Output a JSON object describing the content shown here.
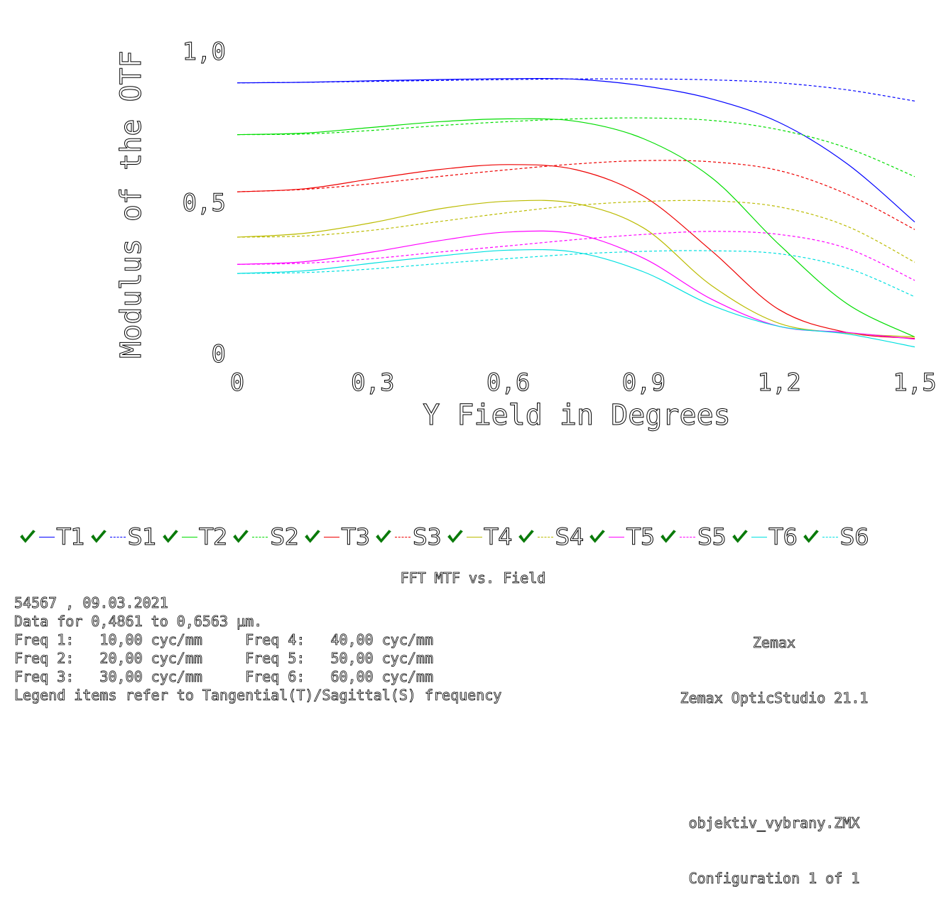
{
  "chart_data": {
    "type": "line",
    "title": "FFT MTF vs. Field",
    "xlabel": "Y Field in Degrees",
    "ylabel": "Modulus of the OTF",
    "xlim": [
      0,
      1.5
    ],
    "ylim": [
      0,
      1.0
    ],
    "xticks": [
      "0",
      "0,3",
      "0,6",
      "0,9",
      "1,2",
      "1,5"
    ],
    "yticks": [
      "0",
      "0,5",
      "1,0"
    ],
    "grid": false,
    "legend_position": "bottom",
    "x": [
      0,
      0.15,
      0.3,
      0.45,
      0.6,
      0.75,
      0.9,
      1.05,
      1.2,
      1.35,
      1.5
    ],
    "series": [
      {
        "name": "T1",
        "color": "#0000ff",
        "style": "solid",
        "values": [
          0.895,
          0.897,
          0.902,
          0.906,
          0.909,
          0.907,
          0.885,
          0.842,
          0.764,
          0.628,
          0.435
        ]
      },
      {
        "name": "S1",
        "color": "#0000ff",
        "style": "dashed",
        "values": [
          0.895,
          0.897,
          0.9,
          0.903,
          0.906,
          0.908,
          0.908,
          0.905,
          0.895,
          0.872,
          0.835
        ]
      },
      {
        "name": "T2",
        "color": "#00dd00",
        "style": "solid",
        "values": [
          0.724,
          0.729,
          0.748,
          0.767,
          0.776,
          0.768,
          0.71,
          0.582,
          0.36,
          0.165,
          0.055
        ]
      },
      {
        "name": "S2",
        "color": "#00dd00",
        "style": "dashed",
        "values": [
          0.724,
          0.726,
          0.738,
          0.754,
          0.767,
          0.776,
          0.779,
          0.771,
          0.74,
          0.68,
          0.585
        ]
      },
      {
        "name": "T3",
        "color": "#ee0000",
        "style": "solid",
        "values": [
          0.535,
          0.545,
          0.578,
          0.609,
          0.625,
          0.608,
          0.52,
          0.34,
          0.145,
          0.07,
          0.05
        ]
      },
      {
        "name": "S3",
        "color": "#ee0000",
        "style": "dashed",
        "values": [
          0.535,
          0.543,
          0.562,
          0.586,
          0.608,
          0.627,
          0.638,
          0.634,
          0.605,
          0.527,
          0.41
        ]
      },
      {
        "name": "T4",
        "color": "#bbbb00",
        "style": "solid",
        "values": [
          0.385,
          0.398,
          0.433,
          0.479,
          0.504,
          0.496,
          0.415,
          0.225,
          0.1,
          0.068,
          0.055
        ]
      },
      {
        "name": "S4",
        "color": "#bbbb00",
        "style": "dashed",
        "values": [
          0.385,
          0.389,
          0.408,
          0.437,
          0.466,
          0.49,
          0.503,
          0.505,
          0.485,
          0.421,
          0.302
        ]
      },
      {
        "name": "T5",
        "color": "#ff00ff",
        "style": "solid",
        "values": [
          0.295,
          0.304,
          0.336,
          0.374,
          0.402,
          0.395,
          0.315,
          0.18,
          0.09,
          0.07,
          0.048
        ]
      },
      {
        "name": "S5",
        "color": "#ff00ff",
        "style": "dashed",
        "values": [
          0.295,
          0.299,
          0.314,
          0.336,
          0.356,
          0.377,
          0.394,
          0.404,
          0.394,
          0.348,
          0.242
        ]
      },
      {
        "name": "T6",
        "color": "#00e0e0",
        "style": "solid",
        "values": [
          0.265,
          0.274,
          0.299,
          0.323,
          0.342,
          0.335,
          0.27,
          0.16,
          0.09,
          0.065,
          0.022
        ]
      },
      {
        "name": "S6",
        "color": "#00e0e0",
        "style": "dashed",
        "values": [
          0.265,
          0.268,
          0.28,
          0.298,
          0.314,
          0.329,
          0.338,
          0.34,
          0.33,
          0.283,
          0.188
        ]
      }
    ]
  },
  "footer": {
    "title": "FFT MTF vs. Field",
    "lines_left": [
      "54567 , 09.03.2021",
      "Data for 0,4861 to 0,6563 µm.",
      "Freq 1:   10,00 cyc/mm     Freq 4:   40,00 cyc/mm",
      "Freq 2:   20,00 cyc/mm     Freq 5:   50,00 cyc/mm",
      "Freq 3:   30,00 cyc/mm     Freq 6:   60,00 cyc/mm",
      "Legend items refer to Tangential(T)/Sagittal(S) frequency"
    ],
    "brand": "Zemax",
    "product": "Zemax OpticStudio 21.1",
    "file": "objektiv_vybrany.ZMX",
    "config": "Configuration 1 of 1"
  }
}
